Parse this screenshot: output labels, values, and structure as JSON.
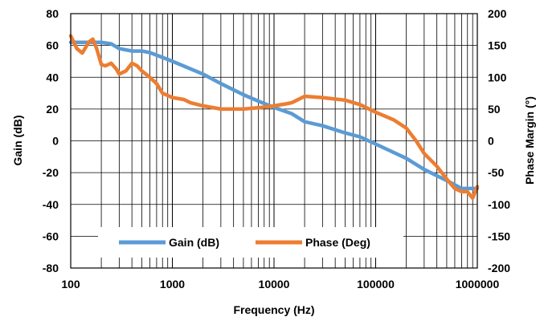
{
  "chart_data": {
    "type": "line",
    "xlabel": "Frequency (Hz)",
    "ylabel": "Gain (dB)",
    "y2label": "Phase Margin (°)",
    "xscale": "log",
    "xlim": [
      100,
      1000000
    ],
    "ylim": [
      -80,
      80
    ],
    "y2lim": [
      -200,
      200
    ],
    "x_ticks": [
      "100",
      "1000",
      "10000",
      "100000",
      "1000000"
    ],
    "y_ticks": [
      "80",
      "60",
      "40",
      "20",
      "0",
      "-20",
      "-40",
      "-60",
      "-80"
    ],
    "y2_ticks": [
      "200",
      "150",
      "100",
      "50",
      "0",
      "-50",
      "-100",
      "-150",
      "-200"
    ],
    "grid": {
      "x_major": true,
      "x_minor": true,
      "y_major": true
    },
    "legend": {
      "position": "bottom-center",
      "entries": [
        "Gain (dB)",
        "Phase (Deg)"
      ]
    },
    "series": [
      {
        "name": "Gain (dB)",
        "axis": "left",
        "color": "#5b9bd5",
        "x": [
          100,
          150,
          200,
          250,
          300,
          400,
          500,
          600,
          800,
          1000,
          2000,
          3000,
          5000,
          7000,
          10000,
          15000,
          20000,
          30000,
          50000,
          70000,
          100000,
          200000,
          300000,
          500000,
          700000,
          1000000
        ],
        "y": [
          62,
          62,
          62,
          61,
          58,
          56.5,
          56.5,
          55.5,
          52.5,
          50,
          42,
          36,
          29,
          25,
          21,
          17,
          12,
          9.5,
          5,
          2.5,
          -2,
          -11,
          -18,
          -25,
          -30,
          -30
        ]
      },
      {
        "name": "Phase (Deg)",
        "axis": "right",
        "color": "#ed7d31",
        "x": [
          100,
          115,
          130,
          150,
          165,
          180,
          200,
          220,
          250,
          280,
          300,
          350,
          400,
          450,
          500,
          600,
          700,
          800,
          1000,
          1300,
          1500,
          2000,
          3000,
          4000,
          5000,
          7000,
          10000,
          13000,
          15000,
          20000,
          30000,
          50000,
          70000,
          100000,
          150000,
          200000,
          250000,
          300000,
          400000,
          500000,
          600000,
          700000,
          800000,
          900000,
          1000000
        ],
        "y": [
          165,
          145,
          138,
          155,
          160,
          145,
          120,
          118,
          122,
          113,
          105,
          110,
          122,
          118,
          110,
          100,
          90,
          75,
          68,
          65,
          60,
          55,
          50,
          50,
          50,
          52,
          55,
          58,
          60,
          70,
          68,
          64,
          57,
          45,
          33,
          20,
          0,
          -20,
          -40,
          -60,
          -75,
          -80,
          -80,
          -90,
          -72
        ]
      }
    ]
  }
}
